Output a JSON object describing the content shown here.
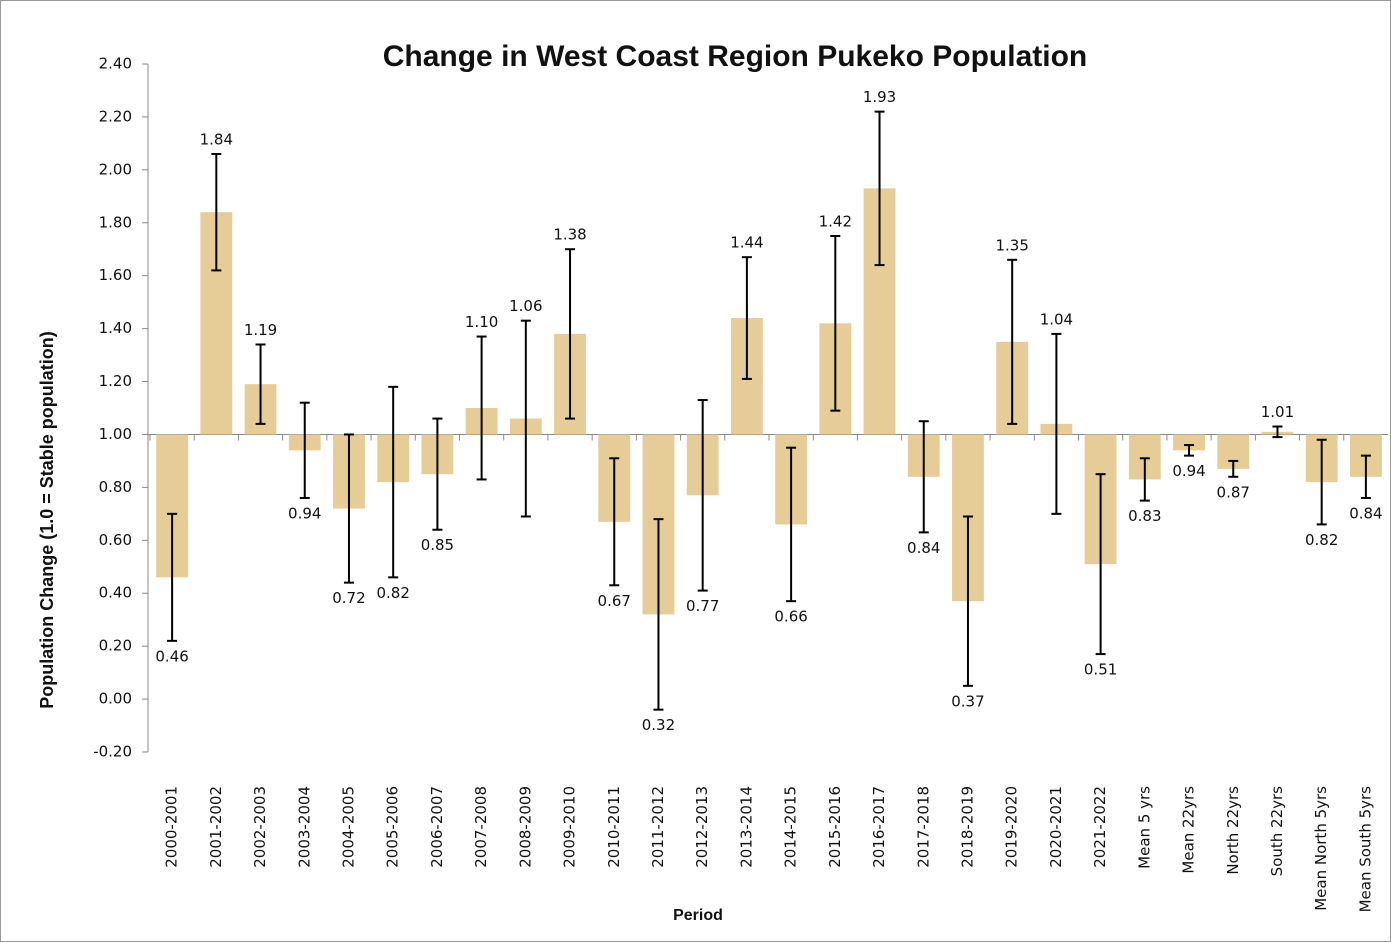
{
  "chart_data": {
    "type": "bar",
    "title": "Change in West Coast Region Pukeko Population",
    "x_label": "Period",
    "y_label": "Population Change (1.0 = Stable population)",
    "categories": [
      "2000-2001",
      "2001-2002",
      "2002-2003",
      "2003-2004",
      "2004-2005",
      "2005-2006",
      "2006-2007",
      "2007-2008",
      "2008-2009",
      "2009-2010",
      "2010-2011",
      "2011-2012",
      "2012-2013",
      "2013-2014",
      "2014-2015",
      "2015-2016",
      "2016-2017",
      "2017-2018",
      "2018-2019",
      "2019-2020",
      "2020-2021",
      "2021-2022",
      "Mean 5 yrs",
      "Mean 22yrs",
      "North 22yrs",
      "South 22yrs",
      "Mean North 5yrs",
      "Mean South 5yrs"
    ],
    "values": [
      0.46,
      1.84,
      1.19,
      0.94,
      0.72,
      0.82,
      0.85,
      1.1,
      1.06,
      1.38,
      0.67,
      0.32,
      0.77,
      1.44,
      0.66,
      1.42,
      1.93,
      0.84,
      0.37,
      1.35,
      1.04,
      0.51,
      0.83,
      0.94,
      0.87,
      1.01,
      0.82,
      0.84
    ],
    "value_labels": [
      "0.46",
      "1.84",
      "1.19",
      "0.94",
      "0.72",
      "0.82",
      "0.85",
      "1.10",
      "1.06",
      "1.38",
      "0.67",
      "0.32",
      "0.77",
      "1.44",
      "0.66",
      "1.42",
      "1.93",
      "0.84",
      "0.37",
      "1.35",
      "1.04",
      "0.51",
      "0.83",
      "0.94",
      "0.87",
      "1.01",
      "0.82",
      "0.84"
    ],
    "errors": [
      0.24,
      0.22,
      0.15,
      0.18,
      0.28,
      0.36,
      0.21,
      0.27,
      0.37,
      0.32,
      0.24,
      0.36,
      0.36,
      0.23,
      0.29,
      0.33,
      0.29,
      0.21,
      0.32,
      0.31,
      0.34,
      0.34,
      0.08,
      0.02,
      0.03,
      0.02,
      0.16,
      0.08
    ],
    "baseline": 1,
    "color": "#e6cc96",
    "ylim": [
      -0.2,
      2.4
    ],
    "yticks": [
      {
        "value": -0.2,
        "label": "-0.20"
      },
      {
        "value": 0,
        "label": "0.00"
      },
      {
        "value": 0.2,
        "label": "0.20"
      },
      {
        "value": 0.4,
        "label": "0.40"
      },
      {
        "value": 0.6,
        "label": "0.60"
      },
      {
        "value": 0.8,
        "label": "0.80"
      },
      {
        "value": 1,
        "label": "1.00"
      },
      {
        "value": 1.2,
        "label": "1.20"
      },
      {
        "value": 1.4,
        "label": "1.40"
      },
      {
        "value": 1.6,
        "label": "1.60"
      },
      {
        "value": 1.8,
        "label": "1.80"
      },
      {
        "value": 2,
        "label": "2.00"
      },
      {
        "value": 2.2,
        "label": "2.20"
      },
      {
        "value": 2.4,
        "label": "2.40"
      }
    ]
  }
}
